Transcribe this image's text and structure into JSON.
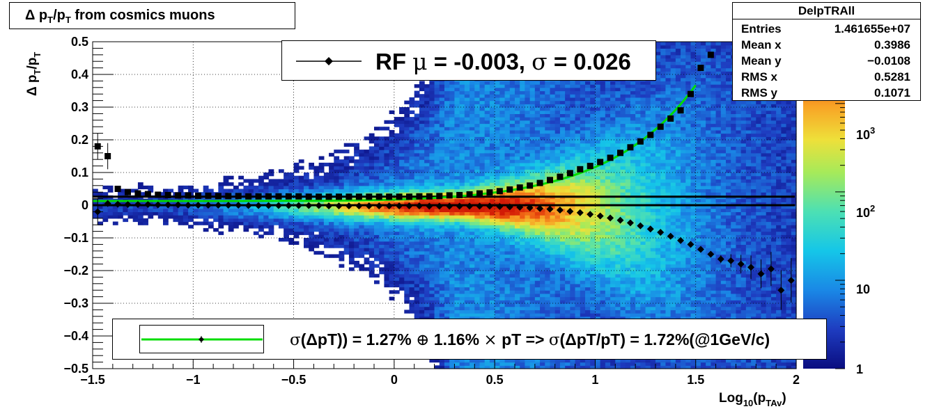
{
  "title": "Δ p_T/p_T from cosmics muons",
  "chart_data": {
    "type": "heatmap",
    "xlabel": "Log10(pTAv)",
    "ylabel": "Δ pT/pT",
    "xlim": [
      -1.5,
      2.0
    ],
    "ylim": [
      -0.5,
      0.5
    ],
    "x_ticks": [
      "−1.5",
      "−1",
      "−0.5",
      "0",
      "0.5",
      "1",
      "1.5",
      "2"
    ],
    "y_ticks": [
      "−0.5",
      "−0.4",
      "−0.3",
      "−0.2",
      "−0.1",
      "0",
      "0.1",
      "0.2",
      "0.3",
      "0.4",
      "0.5"
    ],
    "colorbar": {
      "scale": "log",
      "range": [
        1,
        5000
      ],
      "ticks": [
        "1",
        "10",
        "10^2",
        "10^3"
      ]
    },
    "grid": true,
    "stats": {
      "name": "DelpTRAll",
      "rows": [
        {
          "label": "Entries",
          "value": "1.461655e+07"
        },
        {
          "label": "Mean x",
          "value": "0.3986"
        },
        {
          "label": "Mean y",
          "value": "−0.0108"
        },
        {
          "label": "RMS x",
          "value": "0.5281"
        },
        {
          "label": "RMS y",
          "value": "0.1071"
        }
      ]
    },
    "mean_points": {
      "x": [
        -1.475,
        -1.425,
        -1.375,
        -1.325,
        -1.275,
        -1.225,
        -1.175,
        -1.125,
        -1.075,
        -1.025,
        -0.975,
        -0.925,
        -0.875,
        -0.825,
        -0.775,
        -0.725,
        -0.675,
        -0.625,
        -0.575,
        -0.525,
        -0.475,
        -0.425,
        -0.375,
        -0.325,
        -0.275,
        -0.225,
        -0.175,
        -0.125,
        -0.075,
        -0.025,
        0.025,
        0.075,
        0.125,
        0.175,
        0.225,
        0.275,
        0.325,
        0.375,
        0.425,
        0.475,
        0.525,
        0.575,
        0.625,
        0.675,
        0.725,
        0.775,
        0.825,
        0.875,
        0.925,
        0.975,
        1.025,
        1.075,
        1.125,
        1.175,
        1.225,
        1.275,
        1.325,
        1.375,
        1.425,
        1.475,
        1.525,
        1.575,
        1.625,
        1.675,
        1.725,
        1.775,
        1.825,
        1.875,
        1.925,
        1.975
      ],
      "y": [
        -0.02,
        0.005,
        0.003,
        0.002,
        0.002,
        0.002,
        0.001,
        0.001,
        0.001,
        0.0,
        0.0,
        0.0,
        0.0,
        0.0,
        0.0,
        -0.001,
        -0.001,
        -0.001,
        -0.001,
        -0.001,
        -0.001,
        -0.001,
        -0.001,
        -0.002,
        -0.002,
        -0.002,
        -0.002,
        -0.002,
        -0.002,
        -0.002,
        -0.002,
        -0.002,
        -0.002,
        -0.003,
        -0.003,
        -0.003,
        -0.003,
        -0.003,
        -0.003,
        -0.003,
        -0.004,
        -0.005,
        -0.006,
        -0.008,
        -0.01,
        -0.012,
        -0.015,
        -0.019,
        -0.023,
        -0.028,
        -0.033,
        -0.039,
        -0.046,
        -0.054,
        -0.063,
        -0.073,
        -0.083,
        -0.095,
        -0.108,
        -0.12,
        -0.135,
        -0.15,
        -0.165,
        -0.17,
        -0.18,
        -0.19,
        -0.21,
        -0.195,
        -0.26,
        -0.23
      ]
    },
    "sigma_points": {
      "x": [
        -1.475,
        -1.425,
        -1.375,
        -1.325,
        -1.275,
        -1.225,
        -1.175,
        -1.125,
        -1.075,
        -1.025,
        -0.975,
        -0.925,
        -0.875,
        -0.825,
        -0.775,
        -0.725,
        -0.675,
        -0.625,
        -0.575,
        -0.525,
        -0.475,
        -0.425,
        -0.375,
        -0.325,
        -0.275,
        -0.225,
        -0.175,
        -0.125,
        -0.075,
        -0.025,
        0.025,
        0.075,
        0.125,
        0.175,
        0.225,
        0.275,
        0.325,
        0.375,
        0.425,
        0.475,
        0.525,
        0.575,
        0.625,
        0.675,
        0.725,
        0.775,
        0.825,
        0.875,
        0.925,
        0.975,
        1.025,
        1.075,
        1.125,
        1.175,
        1.225,
        1.275,
        1.325,
        1.375,
        1.425,
        1.475,
        1.525,
        1.575
      ],
      "y": [
        0.18,
        0.15,
        0.05,
        0.04,
        0.036,
        0.034,
        0.032,
        0.031,
        0.03,
        0.03,
        0.029,
        0.029,
        0.028,
        0.028,
        0.028,
        0.027,
        0.027,
        0.027,
        0.027,
        0.027,
        0.027,
        0.026,
        0.026,
        0.026,
        0.026,
        0.026,
        0.026,
        0.026,
        0.026,
        0.026,
        0.026,
        0.026,
        0.027,
        0.027,
        0.028,
        0.03,
        0.031,
        0.033,
        0.036,
        0.039,
        0.043,
        0.048,
        0.054,
        0.06,
        0.068,
        0.077,
        0.087,
        0.098,
        0.11,
        0.12,
        0.132,
        0.145,
        0.16,
        0.177,
        0.195,
        0.215,
        0.24,
        0.265,
        0.29,
        0.34,
        0.42,
        0.46
      ]
    },
    "fit_curve": {
      "a": 0.0127,
      "b": 0.0116,
      "x_range": [
        -1.5,
        1.5
      ],
      "color": "#00dd00"
    },
    "ref_lines": [
      0.0,
      0.026
    ]
  },
  "legends": {
    "fit": {
      "prefix": "RF ",
      "mu": "μ",
      "mid": " = -0.003, ",
      "sigma": "σ",
      "suffix": " =   0.026"
    },
    "resolution": {
      "s1": "σ",
      "p1": "(ΔpT)) =  1.27% ",
      "oplus": "⊕",
      "p2": "  1.16% ",
      "times": "×",
      "p3": " pT => ",
      "s2": "σ",
      "p4": "(ΔpT/pT) =  1.72%(@1GeV/c)"
    }
  }
}
